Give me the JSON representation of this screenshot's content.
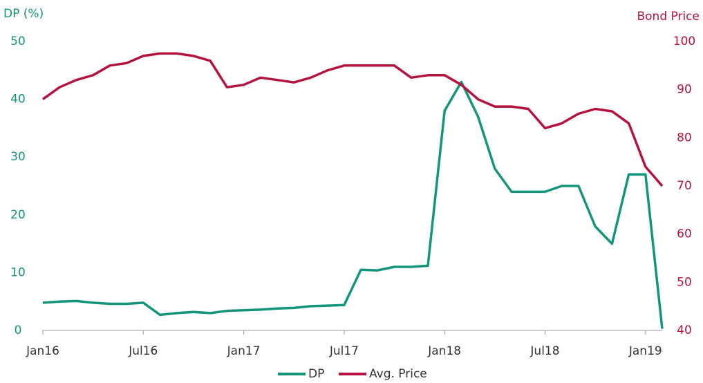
{
  "chart_data": {
    "type": "line",
    "y_label": "DP (%)",
    "y2_label": "Bond Price",
    "x": [
      "2016-01",
      "2016-02",
      "2016-03",
      "2016-04",
      "2016-05",
      "2016-06",
      "2016-07",
      "2016-08",
      "2016-09",
      "2016-10",
      "2016-11",
      "2016-12",
      "2017-01",
      "2017-02",
      "2017-03",
      "2017-04",
      "2017-05",
      "2017-06",
      "2017-07",
      "2017-08",
      "2017-09",
      "2017-10",
      "2017-11",
      "2017-12",
      "2018-01",
      "2018-02",
      "2018-03",
      "2018-04",
      "2018-05",
      "2018-06",
      "2018-07",
      "2018-08",
      "2018-09",
      "2018-10",
      "2018-11",
      "2018-12",
      "2019-01",
      "2019-02"
    ],
    "series": [
      {
        "name": "DP",
        "color": "#12957a",
        "axis": "y",
        "values": [
          4.8,
          5.0,
          5.1,
          4.8,
          4.6,
          4.6,
          4.8,
          2.7,
          3.0,
          3.2,
          3.0,
          3.4,
          3.5,
          3.6,
          3.8,
          3.9,
          4.2,
          4.3,
          4.4,
          10.5,
          10.4,
          11.0,
          11.0,
          11.2,
          38.0,
          43.0,
          37.0,
          28.0,
          24.0,
          24.0,
          24.0,
          25.0,
          25.0,
          18.0,
          15.0,
          27.0,
          27.0,
          0.3
        ]
      },
      {
        "name": "Avg. Price",
        "color": "#b5123e",
        "axis": "y2",
        "values": [
          88,
          90.5,
          92,
          93,
          95,
          95.5,
          97,
          97.5,
          97.5,
          97,
          96,
          90.5,
          91,
          92.5,
          92,
          91.5,
          92.5,
          94,
          95,
          95,
          95,
          95,
          92.5,
          93,
          93,
          91,
          88,
          86.5,
          86.5,
          86,
          82,
          83,
          85,
          86,
          85.5,
          83,
          74,
          70
        ]
      }
    ],
    "xlim": [
      "2016-01",
      "2019-02"
    ],
    "xticks": [
      {
        "value": "2016-01",
        "label": "Jan16"
      },
      {
        "value": "2016-07",
        "label": "Jul16"
      },
      {
        "value": "2017-01",
        "label": "Jan17"
      },
      {
        "value": "2017-07",
        "label": "Jul17"
      },
      {
        "value": "2018-01",
        "label": "Jan18"
      },
      {
        "value": "2018-07",
        "label": "Jul18"
      },
      {
        "value": "2019-01",
        "label": "Jan19"
      }
    ],
    "ylim": [
      0,
      50
    ],
    "yticks": [
      0,
      10,
      20,
      30,
      40,
      50
    ],
    "y2lim": [
      40,
      100
    ],
    "y2ticks": [
      40,
      50,
      60,
      70,
      80,
      90,
      100
    ],
    "grid": false,
    "legend": "bottom"
  }
}
